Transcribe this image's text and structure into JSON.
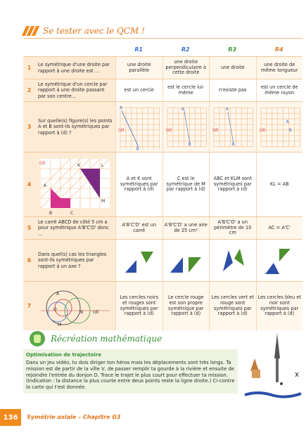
{
  "header": {
    "title": "Se tester avec le QCM !"
  },
  "columns": [
    "R1",
    "R2",
    "R3",
    "R4"
  ],
  "rows": [
    {
      "num": "1",
      "question": "Le symétrique d'une droite par rapport à une droite est ...",
      "answers": [
        "une droite parallèle",
        "une droite perpendiculaire à cette droite",
        "une droite",
        "une droite de même longueur"
      ]
    },
    {
      "num": "2",
      "question": "Le symétrique d'un cercle par rapport à une droite passant par son centre...",
      "answers": [
        "est un cercle",
        "est le cercle lui-même",
        "n'existe pas",
        "est un cercle de même rayon"
      ]
    },
    {
      "num": "3",
      "question": "Sur quelle(s) figure(s) les points A et B sont-ils symétriques par rapport à (d) ?",
      "answers": [
        "",
        "",
        "",
        ""
      ]
    },
    {
      "num": "4",
      "question": "",
      "answers": [
        "A et K sont symétriques par rapport à (d)",
        "C est le symétrique de M par rapport à (d)",
        "ABC et KLM sont symétriques par rapport à (d)",
        "KL = AB"
      ]
    },
    {
      "num": "5",
      "question": "Le carré ABCD de côté 5 cm a pour symétrique A'B'C'D' donc ...",
      "answers": [
        "A'B'C'D' est un carré",
        "A'B'C'D' a une aire de 25 cm²",
        "A'B'C'D' a un périmètre de 10 cm",
        "AC = A'C'"
      ]
    },
    {
      "num": "6",
      "question": "Dans quel(s) cas les triangles sont-ils symétriques par rapport à un axe ?",
      "answers": [
        "",
        "",
        "",
        ""
      ]
    },
    {
      "num": "7",
      "question": "",
      "answers": [
        "Les cercles noirs et rouges sont symétriques par rapport à (d)",
        "Le cercle rouge est son propre symétrique par rapport à (d)",
        "Les cercles vert et rouge sont symétriques par rapport à (d)",
        "Les cercles bleu et noir sont symétriques par rapport à (d)"
      ]
    }
  ],
  "labels": {
    "A": "A",
    "B": "B",
    "d": "(d)",
    "K": "K",
    "L": "L",
    "M": "M",
    "C": "C",
    "O": "O"
  },
  "recreation": {
    "title": "Récréation mathématique",
    "box_title": "Optimisation de trajectoire",
    "body": "Dans un jeu vidéo, tu dois diriger ton héros mais les déplacements sont très longs. Ta mission est de partir de la ville V, de passer remplir ta gourde à la rivière et ensuite de rejoindre l'entrée du donjon D. Trace le trajet le plus court pour effectuer ta mission. (Indication : la distance la plus courte entre deux points reste la ligne droite.) Ci-contre la carte qui t'est donnée."
  },
  "footer": {
    "page": "136",
    "text": "Symétrie axiale – Chapitre G3"
  }
}
